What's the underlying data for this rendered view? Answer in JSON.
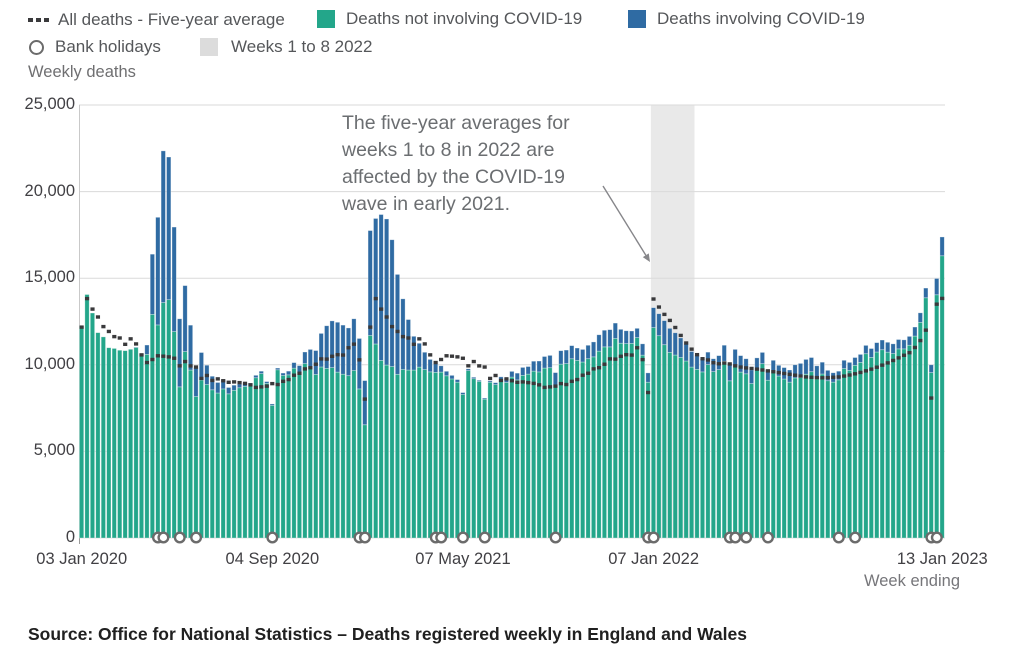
{
  "colors": {
    "green": "#23a68a",
    "blue": "#2f6ba3",
    "avg_dash": "#39393b",
    "band": "#e9e9e9",
    "grid": "#dadada",
    "circle_ring": "#6b6b6b",
    "arrow": "#86868a"
  },
  "legend": {
    "items": [
      {
        "type": "dashes",
        "label": "All deaths - Five-year average"
      },
      {
        "type": "swatch-green",
        "label": "Deaths not involving COVID-19"
      },
      {
        "type": "swatch-blue",
        "label": "Deaths involving COVID-19"
      },
      {
        "type": "ring",
        "label": "Bank holidays"
      },
      {
        "type": "swatch-band",
        "label": "Weeks 1 to 8 2022"
      }
    ]
  },
  "axis": {
    "y_title": "Weekly deaths",
    "x_title": "Week ending",
    "y_ticks": [
      {
        "label": "25,000",
        "value": 25000
      },
      {
        "label": "20,000",
        "value": 20000
      },
      {
        "label": "15,000",
        "value": 15000
      },
      {
        "label": "10,000",
        "value": 10000
      },
      {
        "label": "5,000",
        "value": 5000
      },
      {
        "label": "0",
        "value": 0
      }
    ],
    "x_ticks": [
      {
        "label": "03 Jan 2020",
        "week_index": 0
      },
      {
        "label": "04 Sep 2020",
        "week_index": 35
      },
      {
        "label": "07 May 2021",
        "week_index": 70
      },
      {
        "label": "07 Jan 2022",
        "week_index": 105
      },
      {
        "label": "13 Jan 2023",
        "week_index": 158
      }
    ]
  },
  "annotation": {
    "lines": [
      "The five-year averages for",
      "weeks 1 to 8 in 2022 are",
      "affected by the COVID-19",
      "wave in early 2021."
    ]
  },
  "source": {
    "text": "Source: Office for National Statistics – Deaths registered weekly in England and Wales"
  },
  "chart_data": {
    "type": "bar",
    "stacked": true,
    "title": "Weekly deaths registered in England and Wales",
    "xlabel": "Week ending",
    "ylabel": "Weekly deaths",
    "ylim": [
      0,
      25000
    ],
    "x_first_week": "03 Jan 2020",
    "x_last_week": "13 Jan 2023",
    "x_interval": "1 week per bar, 159 weeks",
    "series_note": "Green bar = all_deaths_total - covid_deaths; blue segment stacked on top = covid_deaths; dashes = five_year_average",
    "highlight_band": {
      "label": "Weeks 1 to 8 2022",
      "start_week_index": 105,
      "week_count": 8
    },
    "bank_holiday_week_indices": [
      14,
      15,
      18,
      21,
      35,
      51,
      52,
      65,
      66,
      70,
      74,
      87,
      104,
      105,
      119,
      120,
      122,
      126,
      139,
      142,
      156,
      157
    ],
    "all_deaths_total": [
      12254,
      14058,
      12990,
      11856,
      11612,
      10986,
      10944,
      10841,
      10816,
      10895,
      11019,
      10645,
      11141,
      16387,
      18516,
      22351,
      21997,
      17953,
      12657,
      14573,
      12288,
      9824,
      10709,
      9976,
      9339,
      8979,
      9140,
      8690,
      8823,
      8891,
      8946,
      8945,
      9392,
      9631,
      9032,
      7739,
      9811,
      9523,
      9634,
      10127,
      9954,
      10739,
      10887,
      10823,
      11812,
      12254,
      12535,
      12456,
      12292,
      12127,
      12657,
      11520,
      9088,
      17751,
      18448,
      18676,
      18420,
      17220,
      15218,
      13809,
      12613,
      11645,
      11243,
      10724,
      10311,
      10062,
      9941,
      9626,
      9389,
      9147,
      8396,
      9767,
      9281,
      9106,
      8080,
      9074,
      8968,
      9306,
      9220,
      9619,
      9518,
      9849,
      9900,
      10207,
      10218,
      10479,
      10542,
      9550,
      10815,
      10851,
      11107,
      10968,
      10887,
      11127,
      11320,
      11734,
      11995,
      12030,
      12409,
      12047,
      11965,
      11952,
      12105,
      11210,
      9533,
      13300,
      12950,
      12550,
      12105,
      11850,
      11550,
      11230,
      10770,
      10550,
      10350,
      10730,
      10350,
      10530,
      11130,
      10060,
      10890,
      10530,
      10350,
      9700,
      10400,
      10715,
      9710,
      10260,
      9970,
      9840,
      9700,
      10000,
      10080,
      10310,
      10420,
      9940,
      10150,
      9680,
      9540,
      9630,
      10260,
      10140,
      10420,
      10600,
      11120,
      10940,
      11280,
      11430,
      11300,
      11210,
      11460,
      11440,
      11640,
      12180,
      13000,
      14430,
      10000,
      14983,
      17381
    ],
    "covid_deaths": [
      0,
      0,
      0,
      0,
      0,
      0,
      0,
      0,
      0,
      0,
      5,
      103,
      539,
      3475,
      6213,
      8758,
      8237,
      6035,
      3930,
      3810,
      2589,
      1653,
      1588,
      1114,
      783,
      606,
      532,
      366,
      295,
      217,
      193,
      152,
      139,
      138,
      101,
      78,
      99,
      139,
      215,
      321,
      438,
      670,
      978,
      1379,
      1937,
      2466,
      2697,
      2877,
      2835,
      2756,
      2986,
      2912,
      2550,
      6057,
      7245,
      8422,
      8433,
      7320,
      5766,
      4079,
      2914,
      1947,
      1376,
      1000,
      719,
      498,
      362,
      260,
      205,
      151,
      107,
      99,
      84,
      65,
      62,
      79,
      111,
      164,
      239,
      327,
      389,
      459,
      438,
      571,
      628,
      667,
      710,
      746,
      775,
      784,
      758,
      716,
      725,
      775,
      861,
      946,
      960,
      994,
      889,
      800,
      744,
      716,
      535,
      652,
      538,
      1150,
      1270,
      1390,
      1385,
      1285,
      1125,
      1010,
      900,
      815,
      760,
      720,
      745,
      810,
      925,
      985,
      1010,
      950,
      870,
      780,
      710,
      650,
      600,
      590,
      620,
      660,
      700,
      760,
      820,
      850,
      820,
      750,
      680,
      600,
      540,
      500,
      480,
      460,
      450,
      460,
      480,
      510,
      540,
      560,
      570,
      560,
      540,
      520,
      510,
      520,
      550,
      560,
      450,
      940,
      1086
    ],
    "five_year_average": [
      12175,
      13822,
      13216,
      12760,
      12206,
      11925,
      11627,
      11548,
      11183,
      11498,
      11205,
      10573,
      10130,
      10305,
      10520,
      10497,
      10458,
      10378,
      9941,
      10188,
      9937,
      9870,
      9213,
      9383,
      9098,
      9187,
      9080,
      8990,
      9012,
      8971,
      8927,
      8843,
      8695,
      8726,
      8768,
      8913,
      8861,
      9046,
      9148,
      9398,
      9511,
      9764,
      9832,
      10032,
      10341,
      10328,
      10491,
      10584,
      10562,
      10984,
      11192,
      10287,
      8019,
      12175,
      13822,
      13216,
      12760,
      12206,
      11925,
      11627,
      11548,
      11183,
      11498,
      11205,
      10573,
      10130,
      10305,
      10520,
      10497,
      10458,
      10378,
      9941,
      10188,
      9937,
      9870,
      9213,
      9383,
      9098,
      9187,
      9080,
      8990,
      9012,
      8971,
      8927,
      8843,
      8695,
      8726,
      8768,
      8913,
      8861,
      9046,
      9148,
      9398,
      9511,
      9764,
      9832,
      10032,
      10341,
      10328,
      10491,
      10584,
      10562,
      10984,
      10300,
      8400,
      13798,
      13334,
      12911,
      12562,
      12154,
      11696,
      11258,
      10903,
      10585,
      10350,
      10280,
      10120,
      10060,
      10100,
      10050,
      9940,
      9870,
      9820,
      9790,
      9750,
      9700,
      9650,
      9600,
      9550,
      9500,
      9450,
      9400,
      9350,
      9300,
      9280,
      9260,
      9250,
      9260,
      9280,
      9300,
      9350,
      9410,
      9480,
      9560,
      9650,
      9750,
      9860,
      9980,
      10110,
      10250,
      10400,
      10550,
      10700,
      11000,
      11400,
      12000,
      8080,
      13500,
      13832
    ]
  }
}
